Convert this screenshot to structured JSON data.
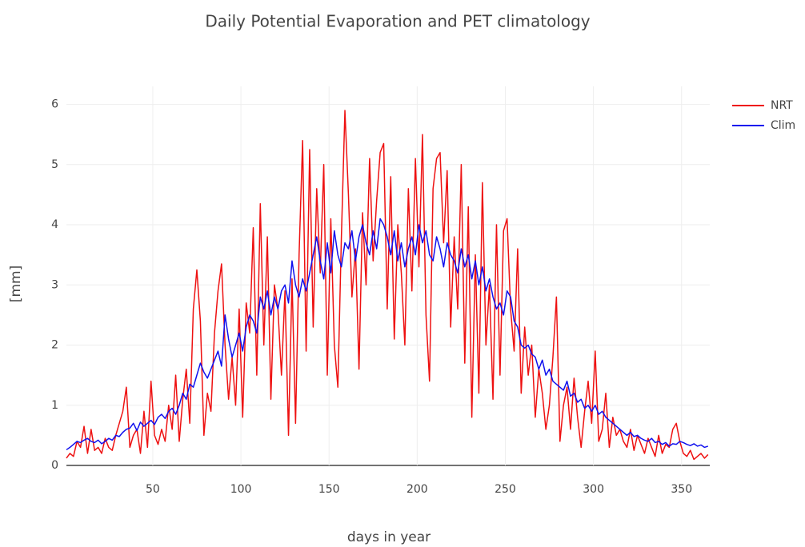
{
  "chart_data": {
    "type": "line",
    "title": "Daily Potential Evaporation and PET climatology",
    "x_label": "days in year",
    "y_label": "[mm]",
    "xlim": [
      1,
      366
    ],
    "ylim": [
      0,
      6.3
    ],
    "xticks": [
      50,
      100,
      150,
      200,
      250,
      300,
      350
    ],
    "yticks": [
      0,
      1,
      2,
      3,
      4,
      5,
      6
    ],
    "grid": true,
    "legend": "right",
    "x": [
      1,
      3,
      5,
      7,
      9,
      11,
      13,
      15,
      17,
      19,
      21,
      23,
      25,
      27,
      29,
      31,
      33,
      35,
      37,
      39,
      41,
      43,
      45,
      47,
      49,
      51,
      53,
      55,
      57,
      59,
      61,
      63,
      65,
      67,
      69,
      71,
      73,
      75,
      77,
      79,
      81,
      83,
      85,
      87,
      89,
      91,
      93,
      95,
      97,
      99,
      101,
      103,
      105,
      107,
      109,
      111,
      113,
      115,
      117,
      119,
      121,
      123,
      125,
      127,
      129,
      131,
      133,
      135,
      137,
      139,
      141,
      143,
      145,
      147,
      149,
      151,
      153,
      155,
      157,
      159,
      161,
      163,
      165,
      167,
      169,
      171,
      173,
      175,
      177,
      179,
      181,
      183,
      185,
      187,
      189,
      191,
      193,
      195,
      197,
      199,
      201,
      203,
      205,
      207,
      209,
      211,
      213,
      215,
      217,
      219,
      221,
      223,
      225,
      227,
      229,
      231,
      233,
      235,
      237,
      239,
      241,
      243,
      245,
      247,
      249,
      251,
      253,
      255,
      257,
      259,
      261,
      263,
      265,
      267,
      269,
      271,
      273,
      275,
      277,
      279,
      281,
      283,
      285,
      287,
      289,
      291,
      293,
      295,
      297,
      299,
      301,
      303,
      305,
      307,
      309,
      311,
      313,
      315,
      317,
      319,
      321,
      323,
      325,
      327,
      329,
      331,
      333,
      335,
      337,
      339,
      341,
      343,
      345,
      347,
      349,
      351,
      353,
      355,
      357,
      359,
      361,
      363,
      365
    ],
    "series": [
      {
        "name": "NRT",
        "color": "#ee1111",
        "values": [
          0.12,
          0.2,
          0.15,
          0.4,
          0.3,
          0.65,
          0.2,
          0.6,
          0.25,
          0.3,
          0.2,
          0.45,
          0.3,
          0.25,
          0.5,
          0.7,
          0.9,
          1.3,
          0.3,
          0.5,
          0.6,
          0.2,
          0.9,
          0.3,
          1.4,
          0.5,
          0.35,
          0.6,
          0.4,
          1.0,
          0.6,
          1.5,
          0.4,
          1.1,
          1.6,
          0.7,
          2.6,
          3.25,
          2.4,
          0.5,
          1.2,
          0.9,
          2.2,
          2.9,
          3.35,
          2.0,
          1.1,
          1.8,
          1.0,
          2.6,
          0.8,
          2.7,
          2.2,
          3.95,
          1.5,
          4.35,
          2.0,
          3.8,
          1.1,
          3.0,
          2.6,
          1.5,
          2.9,
          0.5,
          3.1,
          0.7,
          3.5,
          5.4,
          1.9,
          5.25,
          2.3,
          4.6,
          3.2,
          5.0,
          1.5,
          4.1,
          2.0,
          1.3,
          3.8,
          5.9,
          4.5,
          2.8,
          3.6,
          1.6,
          4.2,
          3.0,
          5.1,
          3.4,
          4.4,
          5.2,
          5.35,
          2.6,
          4.8,
          2.1,
          4.0,
          3.2,
          2.0,
          4.6,
          2.9,
          5.1,
          3.3,
          5.5,
          2.5,
          1.4,
          4.6,
          5.1,
          5.2,
          3.7,
          4.9,
          2.3,
          3.8,
          2.6,
          5.0,
          1.7,
          4.3,
          0.8,
          3.5,
          1.2,
          4.7,
          2.0,
          3.0,
          1.1,
          4.0,
          1.5,
          3.9,
          4.1,
          2.6,
          1.9,
          3.6,
          1.2,
          2.3,
          1.5,
          2.0,
          0.8,
          1.6,
          1.2,
          0.6,
          1.0,
          1.8,
          2.8,
          0.4,
          1.0,
          1.3,
          0.6,
          1.45,
          0.8,
          0.3,
          0.9,
          1.4,
          0.7,
          1.9,
          0.4,
          0.6,
          1.2,
          0.3,
          0.8,
          0.5,
          0.6,
          0.4,
          0.3,
          0.6,
          0.25,
          0.5,
          0.35,
          0.2,
          0.45,
          0.3,
          0.15,
          0.5,
          0.2,
          0.35,
          0.3,
          0.6,
          0.7,
          0.4,
          0.2,
          0.15,
          0.25,
          0.1,
          0.15,
          0.2,
          0.12,
          0.18
        ]
      },
      {
        "name": "Clim",
        "color": "#1111ee",
        "values": [
          0.26,
          0.3,
          0.35,
          0.4,
          0.38,
          0.42,
          0.45,
          0.4,
          0.38,
          0.42,
          0.36,
          0.4,
          0.45,
          0.42,
          0.5,
          0.48,
          0.55,
          0.6,
          0.62,
          0.7,
          0.58,
          0.72,
          0.65,
          0.7,
          0.75,
          0.68,
          0.8,
          0.85,
          0.78,
          0.9,
          0.95,
          0.85,
          1.0,
          1.2,
          1.1,
          1.35,
          1.3,
          1.5,
          1.7,
          1.55,
          1.45,
          1.6,
          1.75,
          1.9,
          1.65,
          2.5,
          2.1,
          1.8,
          2.0,
          2.2,
          1.9,
          2.3,
          2.5,
          2.4,
          2.2,
          2.8,
          2.6,
          2.9,
          2.5,
          2.8,
          2.6,
          2.9,
          3.0,
          2.7,
          3.4,
          3.0,
          2.8,
          3.1,
          2.9,
          3.2,
          3.5,
          3.8,
          3.4,
          3.1,
          3.7,
          3.2,
          3.9,
          3.5,
          3.3,
          3.7,
          3.6,
          3.9,
          3.4,
          3.8,
          4.0,
          3.7,
          3.5,
          3.9,
          3.6,
          4.1,
          4.0,
          3.8,
          3.5,
          3.9,
          3.4,
          3.7,
          3.3,
          3.6,
          3.8,
          3.5,
          4.0,
          3.7,
          3.9,
          3.5,
          3.4,
          3.8,
          3.6,
          3.3,
          3.7,
          3.5,
          3.4,
          3.2,
          3.6,
          3.3,
          3.5,
          3.1,
          3.4,
          3.0,
          3.3,
          2.9,
          3.1,
          2.8,
          2.6,
          2.7,
          2.5,
          2.9,
          2.8,
          2.4,
          2.3,
          2.0,
          1.95,
          2.0,
          1.85,
          1.8,
          1.6,
          1.75,
          1.5,
          1.6,
          1.4,
          1.35,
          1.3,
          1.25,
          1.4,
          1.15,
          1.2,
          1.05,
          1.1,
          0.95,
          1.0,
          0.9,
          1.0,
          0.85,
          0.9,
          0.8,
          0.75,
          0.7,
          0.65,
          0.6,
          0.55,
          0.5,
          0.55,
          0.48,
          0.5,
          0.45,
          0.42,
          0.4,
          0.45,
          0.38,
          0.4,
          0.35,
          0.38,
          0.32,
          0.36,
          0.35,
          0.4,
          0.38,
          0.35,
          0.33,
          0.36,
          0.32,
          0.34,
          0.3,
          0.32
        ]
      }
    ]
  }
}
